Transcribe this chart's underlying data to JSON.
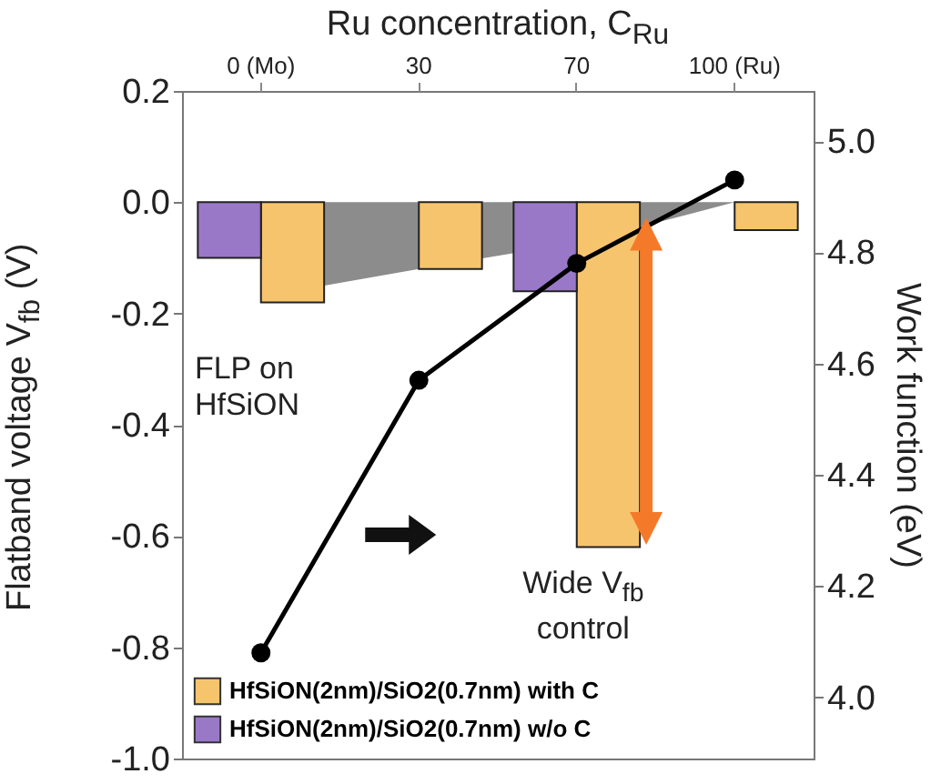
{
  "chart_data": {
    "type": "bar",
    "xlabel": "Ru concentration, C$_{Ru}$",
    "ylabel": "Flatband voltage V$_{fb}$ (V)",
    "y2label": "Work function (eV)",
    "categories": [
      "0 (Mo)",
      "30",
      "70",
      "100 (Ru)"
    ],
    "series": [
      {
        "type": "area",
        "color": "#8c8c8c",
        "values": [
          -0.17,
          -0.12,
          -0.07,
          0.0
        ]
      },
      {
        "name": "HfSiON(2nm)/SiO2(0.7nm) with C",
        "color": "#f7c46e",
        "values": [
          -0.18,
          -0.12,
          -0.62,
          -0.05
        ]
      },
      {
        "name": "HfSiON(2nm)/SiO2(0.7nm) w/o C",
        "color": "#9a78c8",
        "values": [
          -0.1,
          null,
          -0.16,
          null
        ]
      },
      {
        "type": "line",
        "axis": "y2",
        "color": "#000000",
        "marker": "circle",
        "values": [
          4.08,
          4.57,
          4.78,
          4.93
        ]
      }
    ],
    "ylim": [
      -1.0,
      0.2
    ],
    "yticks": [
      {
        "value": -1.0,
        "label": "-1.0"
      },
      {
        "value": -0.8,
        "label": "-0.8"
      },
      {
        "value": -0.6,
        "label": "-0.6"
      },
      {
        "value": -0.4,
        "label": "-0.4"
      },
      {
        "value": -0.2,
        "label": "-0.2"
      },
      {
        "value": 0,
        "label": "0.0"
      },
      {
        "value": 0.2,
        "label": "0.2"
      }
    ],
    "y2lim": [
      3.89,
      5.09
    ],
    "y2ticks": [
      {
        "value": 4.0,
        "label": "4.0"
      },
      {
        "value": 4.2,
        "label": "4.2"
      },
      {
        "value": 4.4,
        "label": "4.4"
      },
      {
        "value": 4.6,
        "label": "4.6"
      },
      {
        "value": 4.8,
        "label": "4.8"
      },
      {
        "value": 5.0,
        "label": "5.0"
      }
    ],
    "annotations": [
      "FLP on HfSiON",
      "Wide V$_{fb}$ control"
    ],
    "legend": "bottom left",
    "grid": false
  }
}
